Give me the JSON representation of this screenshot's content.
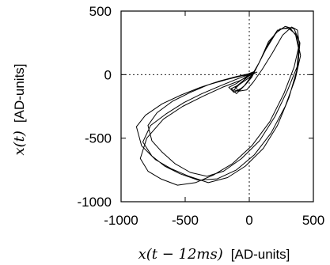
{
  "chart_data": {
    "type": "line",
    "xlabel_math": "x(t − 12ms)",
    "xlabel_unit": "[AD-units]",
    "ylabel_math": "x(t)",
    "ylabel_unit": "[AD-units]",
    "xlim": [
      -1000,
      500
    ],
    "ylim": [
      -1000,
      500
    ],
    "xticks": [
      -1000,
      -500,
      0,
      500
    ],
    "yticks": [
      -1000,
      -500,
      0,
      500
    ],
    "xtick_labels": [
      "-1000",
      "-500",
      "0",
      "500"
    ],
    "ytick_labels": [
      "-1000",
      "-500",
      "0",
      "500"
    ],
    "zero_lines": true,
    "grid": false,
    "series": [
      {
        "values_note": "",
        "x": [
          30,
          0,
          -60,
          -120,
          -90,
          -30,
          20,
          60,
          130,
          210,
          280,
          350,
          395,
          380,
          300,
          200,
          80,
          -60,
          -200,
          -330,
          -460,
          -580,
          -680,
          -760,
          -790,
          -720,
          -600,
          -460,
          -320,
          -180,
          -60,
          20,
          60,
          40,
          -10,
          -80,
          -140,
          -100,
          -40,
          10,
          70,
          140,
          220,
          300,
          360,
          385,
          370,
          310,
          220,
          110,
          -30,
          -170,
          -320,
          -470,
          -610,
          -730,
          -840,
          -880,
          -810,
          -680,
          -530,
          -380,
          -230,
          -100,
          -10,
          40,
          20,
          -30,
          -100,
          -160,
          -120,
          -50,
          0,
          80,
          150,
          240,
          320,
          370,
          400,
          360,
          280,
          170,
          40,
          -100,
          -250,
          -400,
          -540,
          -660,
          -760,
          -830,
          -770,
          -650,
          -510,
          -370,
          -230,
          -110,
          -20,
          30,
          10,
          -50,
          -110,
          -80,
          -20,
          30,
          100,
          180,
          260,
          330,
          375,
          390,
          350,
          270,
          160,
          20,
          -130,
          -280,
          -420,
          -560,
          -690,
          -790,
          -850,
          -800,
          -670,
          -520,
          -360,
          -210,
          -80,
          0,
          50
        ],
        "y": [
          20,
          0,
          -60,
          -120,
          -130,
          -80,
          -20,
          60,
          200,
          330,
          380,
          360,
          250,
          80,
          -120,
          -330,
          -520,
          -660,
          -760,
          -800,
          -770,
          -700,
          -610,
          -520,
          -400,
          -300,
          -210,
          -140,
          -80,
          -40,
          -10,
          5,
          20,
          10,
          -30,
          -80,
          -110,
          -150,
          -90,
          -20,
          80,
          230,
          350,
          370,
          320,
          200,
          30,
          -180,
          -400,
          -580,
          -720,
          -810,
          -850,
          -800,
          -740,
          -670,
          -560,
          -410,
          -320,
          -230,
          -160,
          -100,
          -50,
          -15,
          5,
          25,
          15,
          -20,
          -70,
          -100,
          -140,
          -100,
          -40,
          100,
          260,
          360,
          365,
          300,
          150,
          -30,
          -250,
          -460,
          -630,
          -750,
          -820,
          -830,
          -780,
          -720,
          -640,
          -530,
          -400,
          -310,
          -220,
          -150,
          -90,
          -40,
          -5,
          10,
          0,
          -50,
          -100,
          -130,
          -120,
          -60,
          40,
          170,
          310,
          375,
          350,
          240,
          60,
          -150,
          -370,
          -560,
          -700,
          -790,
          -850,
          -870,
          -820,
          -760,
          -660,
          -500,
          -350,
          -250,
          -170,
          -100,
          -50,
          -10,
          15
        ]
      }
    ]
  }
}
